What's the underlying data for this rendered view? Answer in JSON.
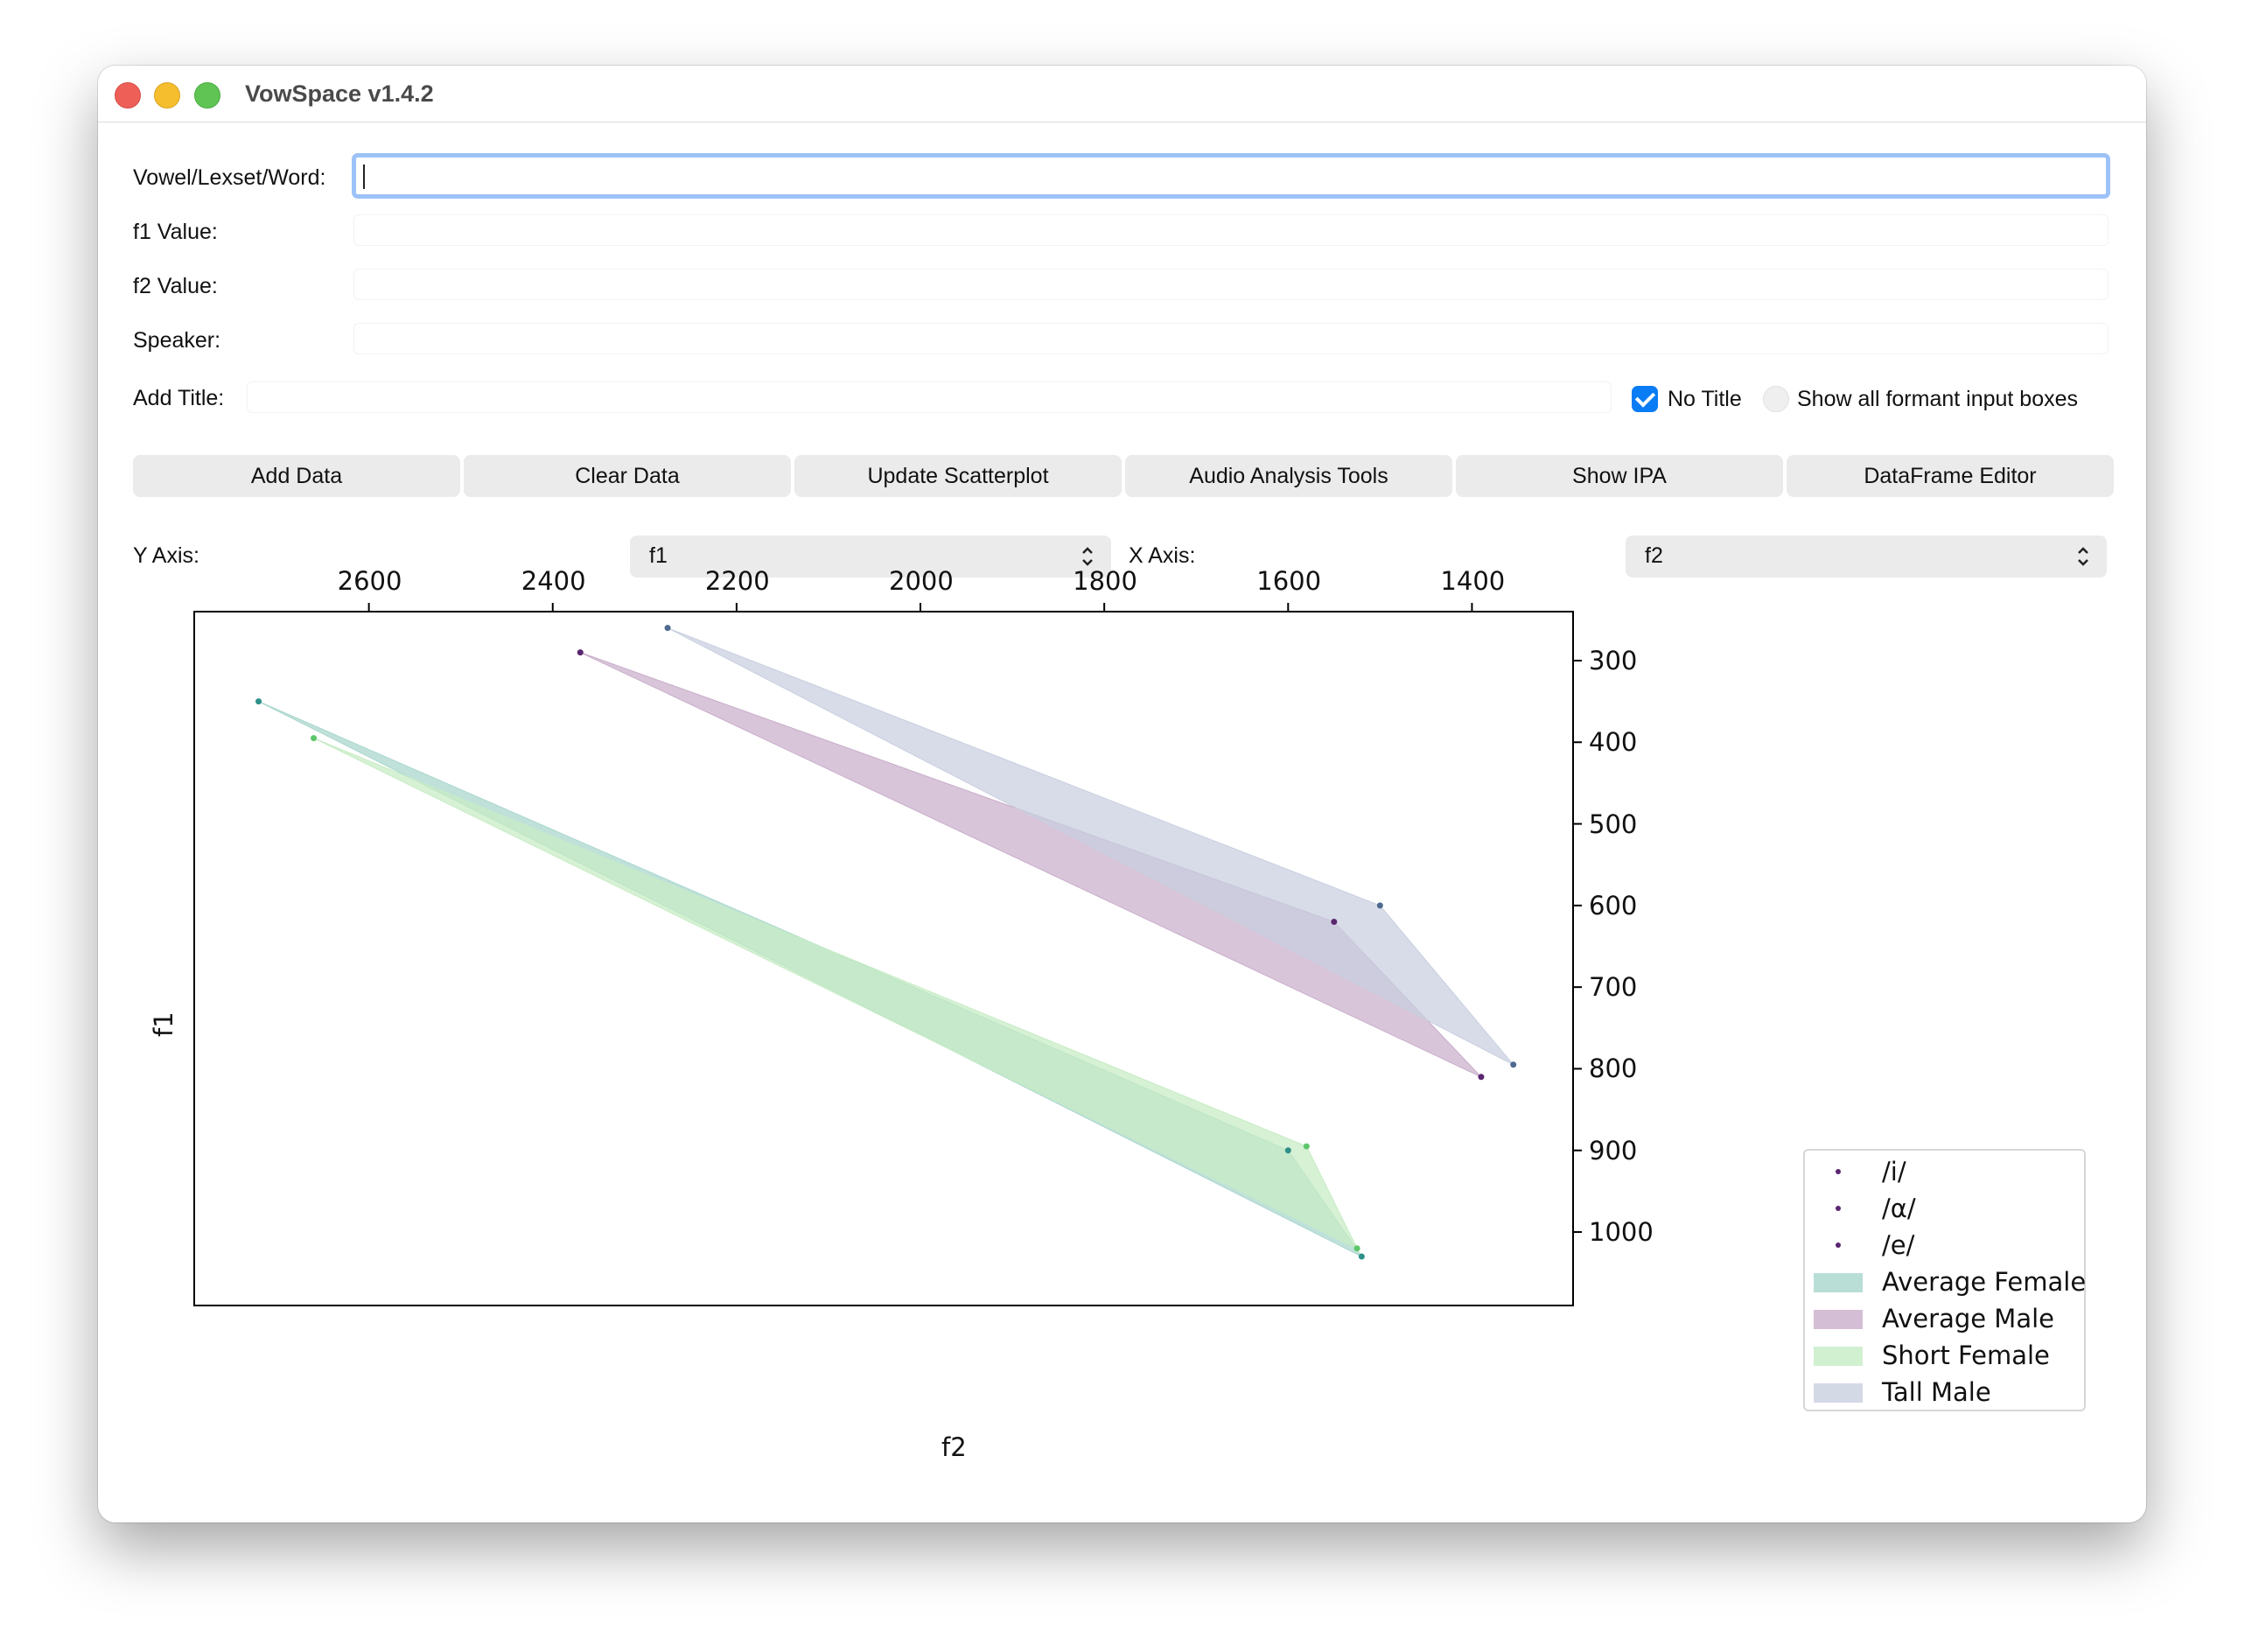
{
  "window": {
    "title": "VowSpace v1.4.2"
  },
  "form": {
    "vowel_label": "Vowel/Lexset/Word:",
    "vowel_value": "",
    "f1_label": "f1 Value:",
    "f2_label": "f2 Value:",
    "speaker_label": "Speaker:",
    "title_label": "Add Title:",
    "no_title_label": "No Title",
    "no_title_checked": true,
    "show_all_label": "Show all formant input boxes",
    "show_all_checked": false
  },
  "buttons": {
    "add_data": "Add Data",
    "clear_data": "Clear Data",
    "update_scatterplot": "Update Scatterplot",
    "audio_tools": "Audio Analysis Tools",
    "show_ipa": "Show IPA",
    "dataframe_editor": "DataFrame Editor"
  },
  "axes_select": {
    "y_label": "Y Axis:",
    "y_value": "f1",
    "x_label": "X Axis:",
    "x_value": "f2"
  },
  "chart_data": {
    "type": "scatter",
    "xlabel": "f2",
    "ylabel": "f1",
    "x_inverted": true,
    "y_inverted": true,
    "x_axis_position": "top",
    "y_axis_position": "right",
    "xlim": [
      2790,
      1290
    ],
    "ylim": [
      240,
      1090
    ],
    "x_ticks": [
      2600,
      2400,
      2200,
      2000,
      1800,
      1600,
      1400
    ],
    "y_ticks": [
      300,
      400,
      500,
      600,
      700,
      800,
      900,
      1000
    ],
    "point_color": "#5a2670",
    "legend_position": "lower-right outside",
    "vowels": [
      "/i/",
      "/α/",
      "/e/"
    ],
    "series": [
      {
        "name": "Average Female",
        "color": "#a8d6cc",
        "stroke": "#2f8f8a",
        "points": [
          {
            "vowel": "/i/",
            "f2": 2720,
            "f1": 350
          },
          {
            "vowel": "/α/",
            "f2": 1520,
            "f1": 1030
          },
          {
            "vowel": "/e/",
            "f2": 1600,
            "f1": 900
          }
        ]
      },
      {
        "name": "Average Male",
        "color": "#c9aecb",
        "stroke": "#5a2670",
        "points": [
          {
            "vowel": "/i/",
            "f2": 2370,
            "f1": 290
          },
          {
            "vowel": "/α/",
            "f2": 1390,
            "f1": 810
          },
          {
            "vowel": "/e/",
            "f2": 1550,
            "f1": 620
          }
        ]
      },
      {
        "name": "Short Female",
        "color": "#c6ecc4",
        "stroke": "#5cc66a",
        "points": [
          {
            "vowel": "/i/",
            "f2": 2660,
            "f1": 395
          },
          {
            "vowel": "/α/",
            "f2": 1525,
            "f1": 1020
          },
          {
            "vowel": "/e/",
            "f2": 1580,
            "f1": 895
          }
        ]
      },
      {
        "name": "Tall Male",
        "color": "#c8cfdf",
        "stroke": "#4f6a8f",
        "points": [
          {
            "vowel": "/i/",
            "f2": 2275,
            "f1": 260
          },
          {
            "vowel": "/α/",
            "f2": 1355,
            "f1": 795
          },
          {
            "vowel": "/e/",
            "f2": 1500,
            "f1": 600
          }
        ]
      }
    ]
  }
}
